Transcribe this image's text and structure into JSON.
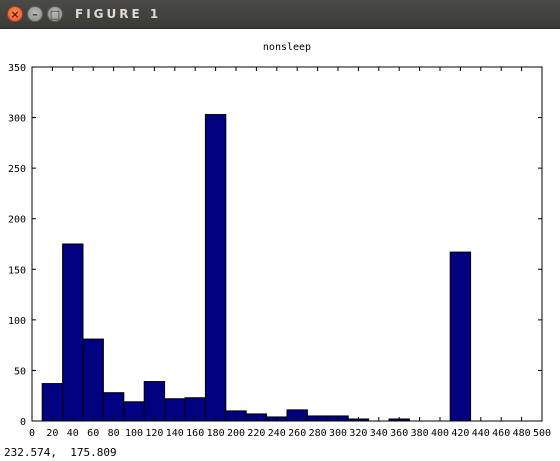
{
  "window": {
    "title": "FIGURE 1",
    "close_glyph": "×",
    "minimize_glyph": "–",
    "maximize_glyph": "□"
  },
  "status": {
    "coordinates": "232.574,  175.809"
  },
  "chart_data": {
    "type": "bar",
    "title": "nonsleep",
    "xlabel": "",
    "ylabel": "",
    "xlim": [
      0,
      500
    ],
    "ylim": [
      0,
      350
    ],
    "xticks": [
      0,
      20,
      40,
      60,
      80,
      100,
      120,
      140,
      160,
      180,
      200,
      220,
      240,
      260,
      280,
      300,
      320,
      340,
      360,
      380,
      400,
      420,
      440,
      460,
      480,
      500
    ],
    "yticks": [
      0,
      50,
      100,
      150,
      200,
      250,
      300,
      350
    ],
    "bin_edges": [
      10,
      30,
      50,
      70,
      90,
      110,
      130,
      150,
      170,
      190,
      210,
      230,
      250,
      270,
      290,
      310,
      330,
      350,
      370,
      390,
      410,
      430,
      450,
      470,
      490
    ],
    "values": [
      37,
      175,
      81,
      28,
      19,
      39,
      22,
      23,
      303,
      10,
      7,
      4,
      11,
      5,
      5,
      2,
      0,
      2,
      0,
      0,
      167,
      0,
      0,
      0
    ],
    "bar_color": "#000080",
    "edge_color": "#000000",
    "grid": false
  }
}
